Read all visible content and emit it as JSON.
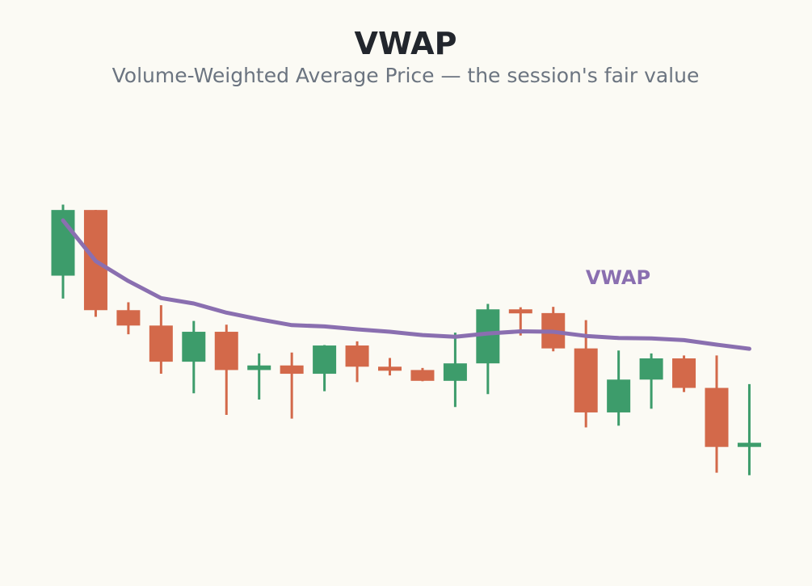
{
  "chart_data": {
    "type": "candlestick",
    "title": "VWAP",
    "subtitle": "Volume-Weighted Average Price — the session's fair value",
    "ylim": [
      0,
      100
    ],
    "grid": false,
    "candles": [
      {
        "open": 63.2,
        "high": 80.3,
        "low": 57.7,
        "close": 79.0
      },
      {
        "open": 79.0,
        "high": 79.0,
        "low": 53.3,
        "close": 54.9
      },
      {
        "open": 54.9,
        "high": 56.8,
        "low": 49.1,
        "close": 51.2
      },
      {
        "open": 51.2,
        "high": 56.1,
        "low": 39.6,
        "close": 42.5
      },
      {
        "open": 42.5,
        "high": 52.3,
        "low": 34.9,
        "close": 49.7
      },
      {
        "open": 49.7,
        "high": 51.4,
        "low": 29.7,
        "close": 40.5
      },
      {
        "open": 40.5,
        "high": 44.5,
        "low": 33.4,
        "close": 41.6
      },
      {
        "open": 41.6,
        "high": 44.7,
        "low": 28.8,
        "close": 39.6
      },
      {
        "open": 39.6,
        "high": 46.5,
        "low": 35.4,
        "close": 46.4
      },
      {
        "open": 46.4,
        "high": 47.4,
        "low": 37.6,
        "close": 41.3
      },
      {
        "open": 41.3,
        "high": 43.4,
        "low": 39.2,
        "close": 40.5
      },
      {
        "open": 40.5,
        "high": 41.0,
        "low": 37.8,
        "close": 37.9
      },
      {
        "open": 37.9,
        "high": 49.5,
        "low": 31.6,
        "close": 42.1
      },
      {
        "open": 42.1,
        "high": 56.4,
        "low": 34.7,
        "close": 55.1
      },
      {
        "open": 55.1,
        "high": 55.6,
        "low": 48.8,
        "close": 54.2
      },
      {
        "open": 54.2,
        "high": 55.7,
        "low": 45.0,
        "close": 45.7
      },
      {
        "open": 45.7,
        "high": 52.5,
        "low": 26.7,
        "close": 30.3
      },
      {
        "open": 30.3,
        "high": 45.2,
        "low": 27.1,
        "close": 38.2
      },
      {
        "open": 38.2,
        "high": 44.5,
        "low": 31.2,
        "close": 43.3
      },
      {
        "open": 43.3,
        "high": 44.0,
        "low": 35.2,
        "close": 36.2
      },
      {
        "open": 36.2,
        "high": 44.0,
        "low": 15.8,
        "close": 22.0
      },
      {
        "open": 22.0,
        "high": 37.1,
        "low": 15.2,
        "close": 23.0
      }
    ],
    "vwap": [
      76.5,
      66.7,
      61.9,
      57.8,
      56.5,
      54.3,
      52.7,
      51.3,
      51.0,
      50.3,
      49.7,
      48.9,
      48.5,
      49.3,
      49.8,
      49.7,
      48.7,
      48.2,
      48.1,
      47.7,
      46.6,
      45.6
    ],
    "series": [
      {
        "name": "VWAP",
        "values_ref": "vwap"
      }
    ],
    "colors": {
      "up": "#3d9c6b",
      "down": "#d3694a",
      "vwap": "#8a6fb0",
      "title": "#22262d",
      "subtitle": "#6b7480",
      "background": "#fbfaf4"
    }
  }
}
